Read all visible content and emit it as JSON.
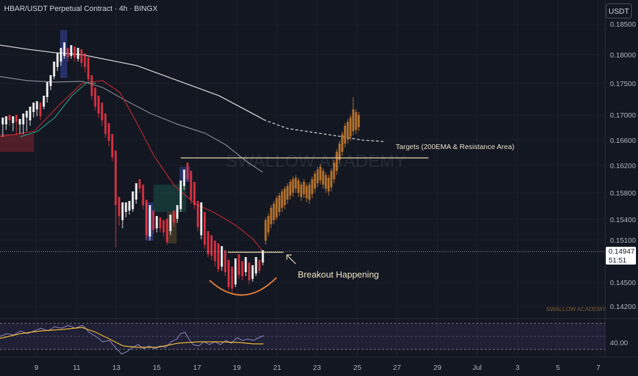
{
  "header": {
    "symbol_title": "HBAR/USDT Perpetual Contract · 4h · BINGX"
  },
  "toolbar": {
    "currency_label": "USDT"
  },
  "price_axis": {
    "ticks": [
      "0.18500",
      "0.18000",
      "0.17500",
      "0.17000",
      "0.16600",
      "0.16200",
      "0.15800",
      "0.15400",
      "0.15100",
      "0.14500",
      "0.14200"
    ],
    "last_price": "0.14947",
    "countdown": "51:51"
  },
  "time_axis": {
    "ticks": [
      "9",
      "11",
      "13",
      "15",
      "17",
      "19",
      "21",
      "23",
      "25",
      "27",
      "29",
      "Jul",
      "3",
      "5",
      "7"
    ]
  },
  "annotations": {
    "breakout": "Breakout Happening",
    "targets": "Targets (200EMA & Resistance Area)",
    "watermark": "SWALLOW ACADEMY",
    "watermark_small": "SWALLOW ACADEMY"
  },
  "rsi": {
    "level_label": "40.00"
  },
  "colors": {
    "background": "#131722",
    "up_candle": "#ffffff",
    "down_candle": "#f23645",
    "projection": "#b8732e",
    "ema_white": "#d6d6d6",
    "ema_grey": "#8a8e99",
    "ma_red": "#c0292e",
    "ma_teal": "#2a9a86",
    "rsi_line": "#9a8cc7",
    "rsi_ma": "#f5c034",
    "arc": "#e07b39",
    "resistance": "#f5e1b0"
  }
}
